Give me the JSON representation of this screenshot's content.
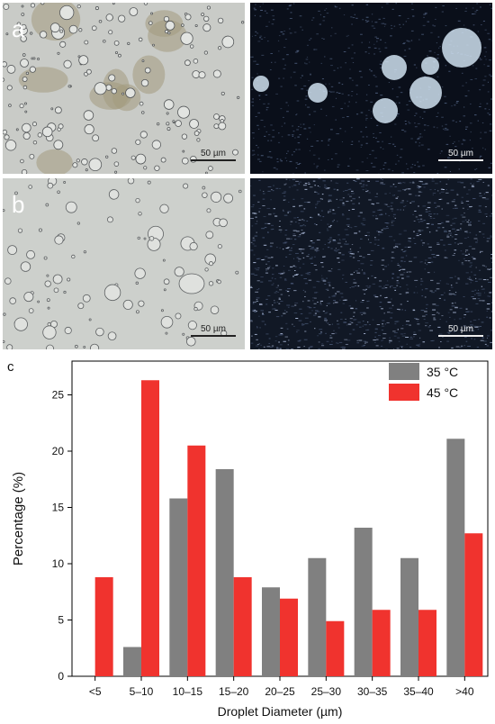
{
  "panels": [
    {
      "label": "a",
      "scale_text": "50 µm"
    },
    {
      "label": "",
      "scale_text": "50 µm"
    },
    {
      "label": "b",
      "scale_text": "50 µm"
    },
    {
      "label": "",
      "scale_text": "50 µm"
    }
  ],
  "chart_label": "c",
  "chart_data": {
    "type": "bar",
    "categories": [
      "<5",
      "5–10",
      "10–15",
      "15–20",
      "20–25",
      "25–30",
      "30–35",
      "35–40",
      ">40"
    ],
    "series": [
      {
        "name": "35 °C",
        "color": "#808080",
        "values": [
          0,
          2.6,
          15.8,
          18.4,
          7.9,
          10.5,
          13.2,
          10.5,
          21.1
        ]
      },
      {
        "name": "45 °C",
        "color": "#f0332e",
        "values": [
          8.8,
          26.3,
          20.5,
          8.8,
          6.9,
          4.9,
          5.9,
          5.9,
          12.7
        ]
      }
    ],
    "xlabel": "Droplet Diameter (µm)",
    "ylabel": "Percentage (%)",
    "ylim": [
      0,
      28
    ],
    "yticks": [
      0,
      5,
      10,
      15,
      20,
      25
    ],
    "legend_position": "top-right",
    "grid": false
  }
}
